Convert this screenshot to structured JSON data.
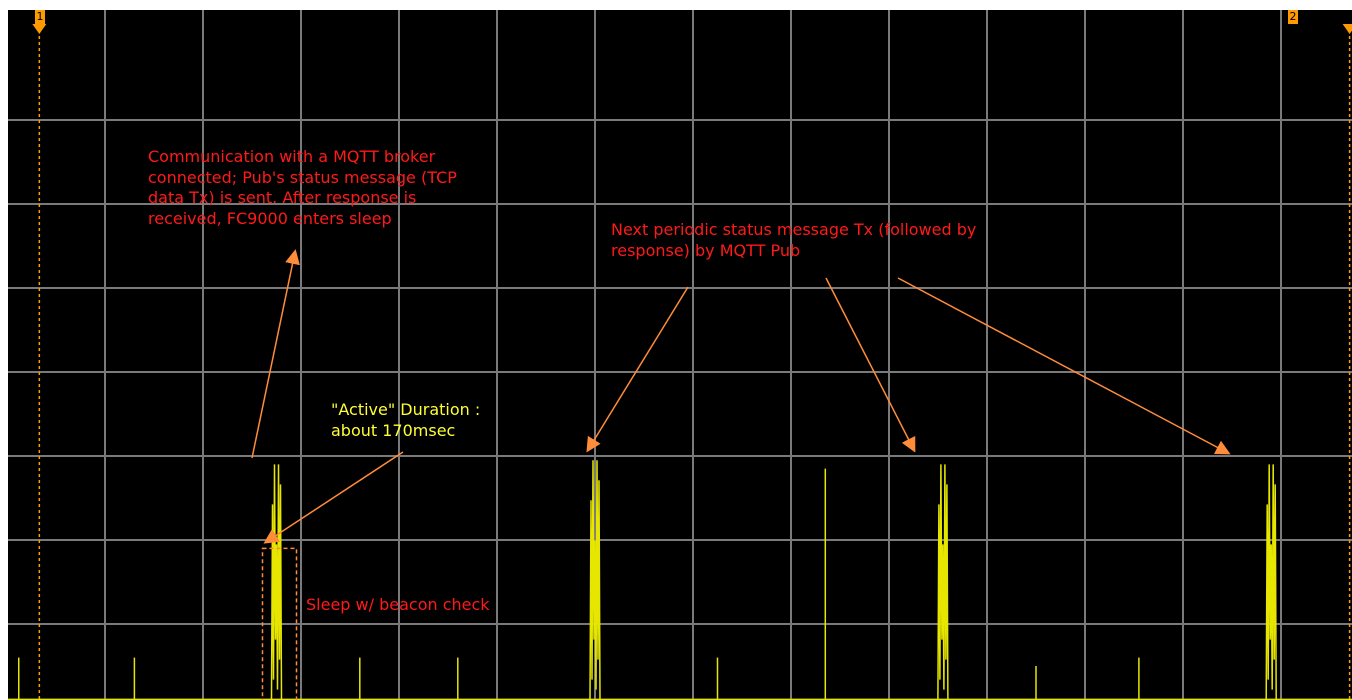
{
  "chart_data": {
    "type": "line",
    "grid": true,
    "grid_divisions": {
      "horizontal": 13,
      "vertical": 8
    },
    "colors": {
      "background": "#000000",
      "grid": "#7a7a7a",
      "trace": "#e6e600",
      "cursor": "#ff9a00",
      "annotation": "#ff1a1a",
      "annotation_arrow": "#ff8c3a"
    },
    "cursors": [
      {
        "label": "1",
        "x_div": 0.33
      },
      {
        "label": "2",
        "x_div": 13.7
      }
    ],
    "baseline_div": 0.1,
    "pulses": [
      {
        "x_div": 0.12,
        "peak_div": 0.6,
        "kind": "beacon"
      },
      {
        "x_div": 1.3,
        "peak_div": 0.6,
        "kind": "beacon"
      },
      {
        "x_div": 2.75,
        "peak_div": 2.9,
        "kind": "active"
      },
      {
        "x_div": 3.6,
        "peak_div": 0.6,
        "kind": "beacon"
      },
      {
        "x_div": 4.6,
        "peak_div": 0.6,
        "kind": "beacon"
      },
      {
        "x_div": 6.0,
        "peak_div": 2.95,
        "kind": "active"
      },
      {
        "x_div": 7.25,
        "peak_div": 0.6,
        "kind": "beacon"
      },
      {
        "x_div": 8.35,
        "peak_div": 2.85,
        "kind": "beacon-tall"
      },
      {
        "x_div": 9.55,
        "peak_div": 2.9,
        "kind": "active"
      },
      {
        "x_div": 10.5,
        "peak_div": 0.5,
        "kind": "beacon"
      },
      {
        "x_div": 11.55,
        "peak_div": 0.6,
        "kind": "beacon"
      },
      {
        "x_div": 12.9,
        "peak_div": 2.9,
        "kind": "active"
      }
    ]
  },
  "annotations": {
    "connect_note": "Communication with a MQTT broker\nconnected; Pub's status message (TCP\ndata Tx) is sent. After response is\nreceived, FC9000 enters sleep",
    "periodic_note": "Next periodic status message Tx (followed by\nresponse) by MQTT Pub",
    "active_note": "\"Active\" Duration :\nabout 170msec",
    "sleep_note": "Sleep w/ beacon check"
  }
}
